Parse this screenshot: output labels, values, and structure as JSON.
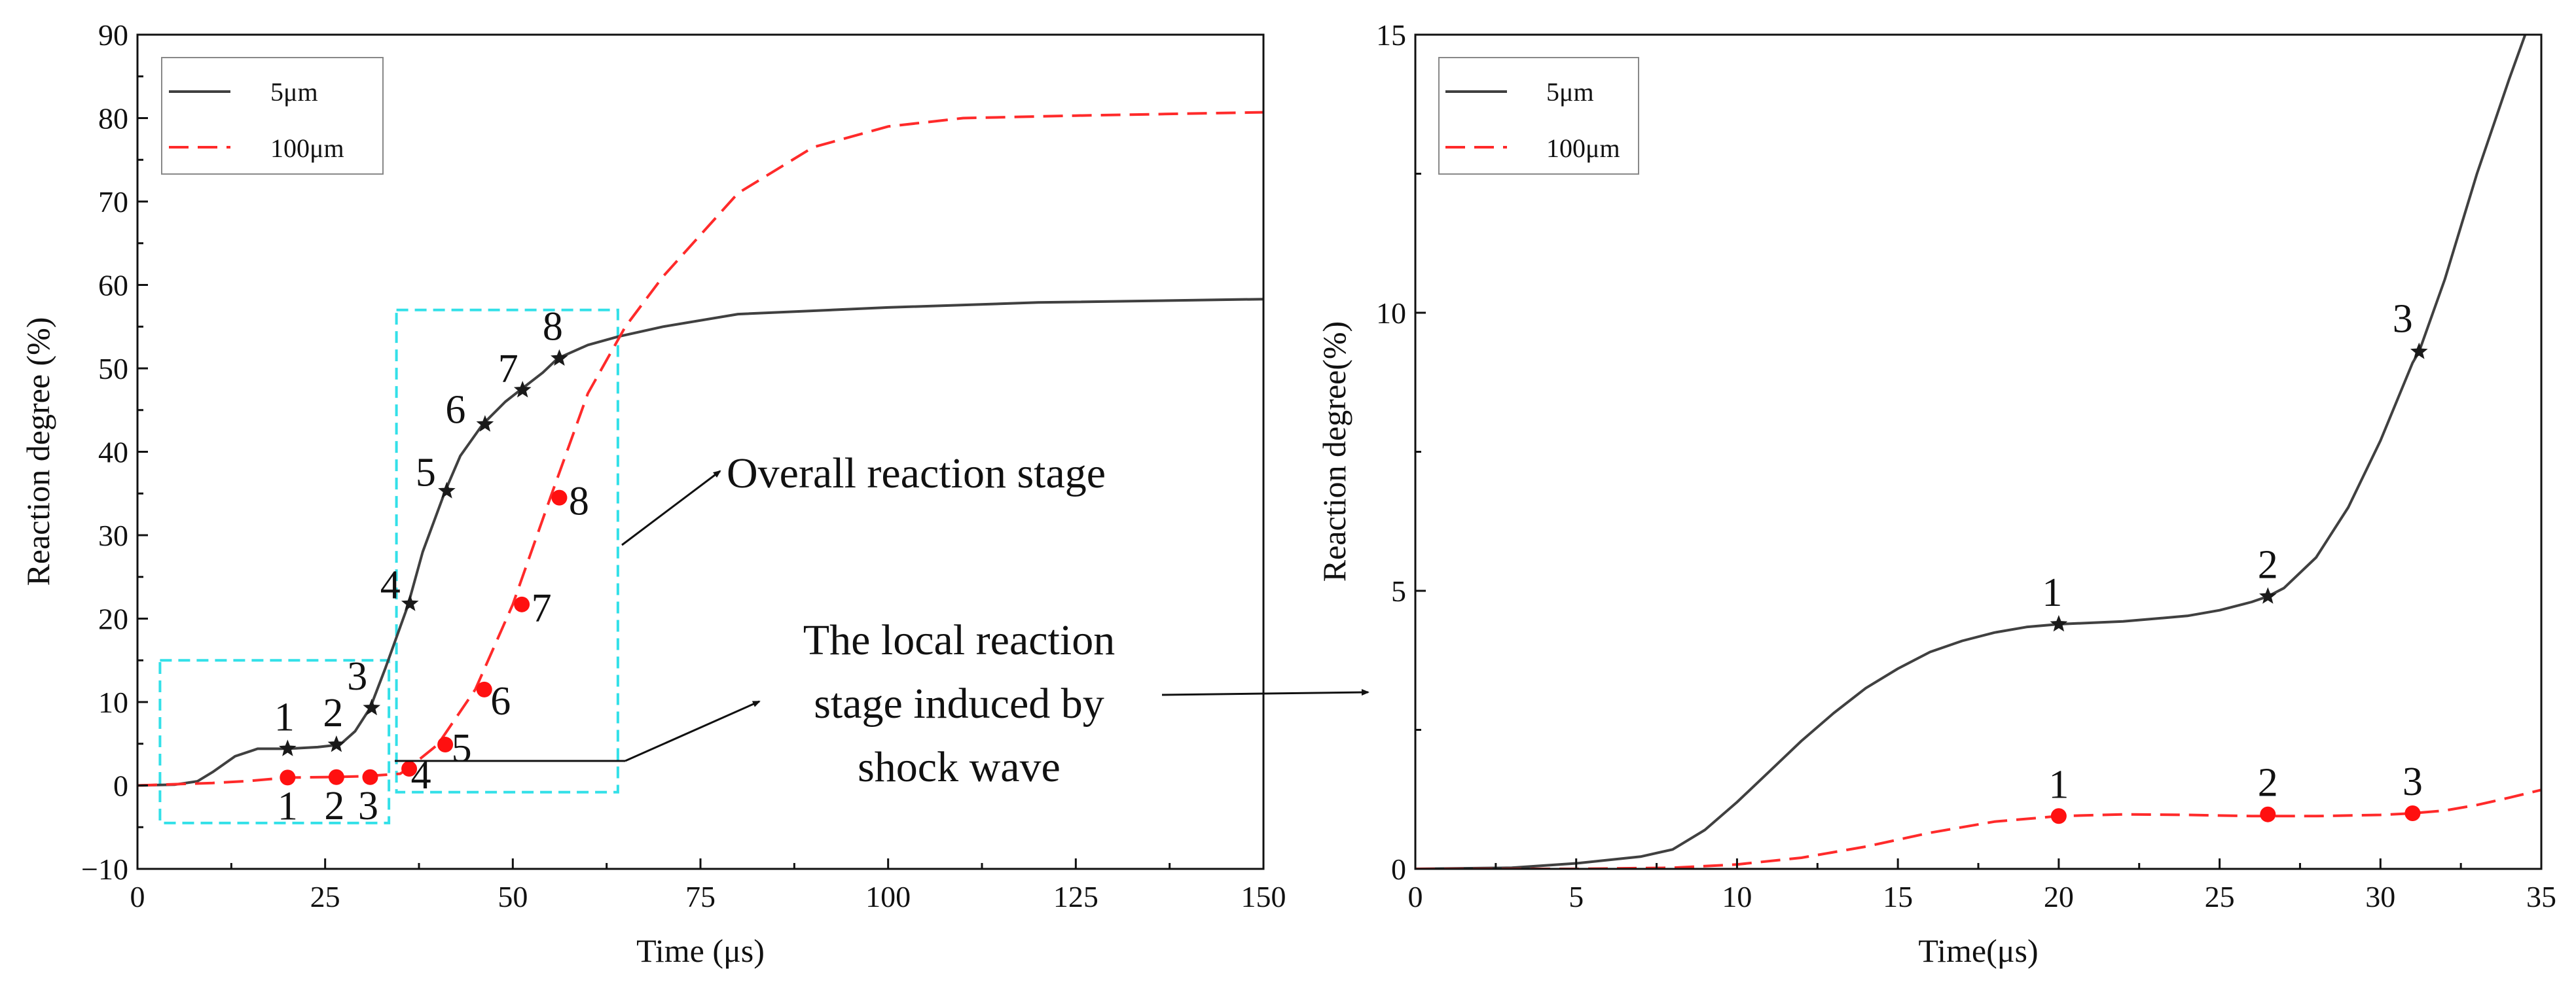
{
  "chart_data": [
    {
      "type": "line",
      "xlabel": "Time (μs)",
      "ylabel": "Reaction degree (%)",
      "xlim": [
        0,
        150
      ],
      "ylim": [
        -10,
        90
      ],
      "xticks": [
        0,
        25,
        50,
        75,
        100,
        125,
        150
      ],
      "yticks": [
        -10,
        0,
        10,
        20,
        30,
        40,
        50,
        60,
        70,
        80,
        90
      ],
      "grid": false,
      "legend": {
        "position": "top-left",
        "entries": [
          "5μm",
          "100μm"
        ]
      },
      "series": [
        {
          "name": "5μm",
          "color": "#404040",
          "dash": "solid",
          "x": [
            0,
            5,
            8,
            10,
            13,
            16,
            19,
            21,
            24,
            27,
            29,
            31,
            33,
            35,
            36,
            38,
            41,
            43,
            46,
            49,
            51,
            54,
            56,
            60,
            64,
            70,
            80,
            100,
            120,
            150
          ],
          "y": [
            0,
            0.1,
            0.5,
            1.6,
            3.5,
            4.4,
            4.4,
            4.45,
            4.6,
            4.9,
            6.5,
            9.3,
            14,
            19,
            21.5,
            28,
            35.3,
            39.5,
            43.3,
            46,
            47.4,
            49.5,
            51.2,
            52.8,
            53.8,
            55,
            56.5,
            57.3,
            57.9,
            58.3
          ]
        },
        {
          "name": "100μm",
          "color": "#ff2a2a",
          "dash": "dashed",
          "x": [
            0,
            10,
            15,
            20,
            25,
            30,
            35,
            36,
            40,
            45,
            50,
            55,
            60,
            65,
            70,
            75,
            80,
            90,
            100,
            110,
            125,
            150
          ],
          "y": [
            0,
            0.3,
            0.55,
            0.95,
            1.0,
            1.1,
            1.4,
            2.0,
            4.9,
            11.5,
            21.7,
            34.5,
            47,
            55,
            61,
            66,
            71,
            76.5,
            79,
            80,
            80.3,
            80.7
          ]
        }
      ],
      "markers": [
        {
          "series": "5μm",
          "symbol": "star",
          "points": [
            {
              "label": "1",
              "x": 20,
              "y": 4.4
            },
            {
              "label": "2",
              "x": 26.5,
              "y": 4.9
            },
            {
              "label": "3",
              "x": 31.2,
              "y": 9.3
            },
            {
              "label": "4",
              "x": 36.3,
              "y": 21.8
            },
            {
              "label": "5",
              "x": 41.2,
              "y": 35.3
            },
            {
              "label": "6",
              "x": 46.3,
              "y": 43.3
            },
            {
              "label": "7",
              "x": 51.3,
              "y": 47.4
            },
            {
              "label": "8",
              "x": 56.2,
              "y": 51.2
            }
          ]
        },
        {
          "series": "100μm",
          "symbol": "circle",
          "points": [
            {
              "label": "1",
              "x": 20,
              "y": 0.95
            },
            {
              "label": "2",
              "x": 26.5,
              "y": 1.0
            },
            {
              "label": "3",
              "x": 31,
              "y": 1.0
            },
            {
              "label": "4",
              "x": 36.2,
              "y": 2.0
            },
            {
              "label": "5",
              "x": 41,
              "y": 4.9
            },
            {
              "label": "6",
              "x": 46.2,
              "y": 11.5
            },
            {
              "label": "7",
              "x": 51.2,
              "y": 21.7
            },
            {
              "label": "8",
              "x": 56.2,
              "y": 34.5
            }
          ]
        }
      ],
      "highlight_boxes": [
        {
          "name": "local-reaction-box",
          "x": [
            3,
            33.5
          ],
          "y": [
            -4.5,
            15
          ],
          "color": "#33e0e8"
        },
        {
          "name": "overall-reaction-box",
          "x": [
            34.5,
            64
          ],
          "y": [
            -0.8,
            57
          ],
          "color": "#33e0e8"
        }
      ],
      "annotations": {
        "overall": [
          "Overall reaction stage"
        ],
        "local": [
          "The local reaction",
          "stage induced by",
          "shock wave"
        ]
      }
    },
    {
      "type": "line",
      "xlabel": "Time(μs)",
      "ylabel": "Reaction degree(%)",
      "xlim": [
        0,
        35
      ],
      "ylim": [
        0,
        15
      ],
      "xticks": [
        0,
        5,
        10,
        15,
        20,
        25,
        30,
        35
      ],
      "yticks": [
        0,
        5,
        10,
        15
      ],
      "grid": false,
      "legend": {
        "position": "top-left",
        "entries": [
          "5μm",
          "100μm"
        ]
      },
      "series": [
        {
          "name": "5μm",
          "color": "#404040",
          "dash": "solid",
          "x": [
            0,
            3,
            5,
            7,
            8,
            9,
            10,
            11,
            12,
            13,
            14,
            15,
            16,
            17,
            18,
            19,
            20,
            22,
            24,
            25,
            26,
            26.5,
            27,
            28,
            29,
            30,
            31,
            31.2,
            32,
            33,
            34,
            34.5
          ],
          "y": [
            0,
            0.02,
            0.1,
            0.22,
            0.35,
            0.7,
            1.2,
            1.75,
            2.3,
            2.8,
            3.25,
            3.6,
            3.9,
            4.1,
            4.25,
            4.35,
            4.4,
            4.45,
            4.55,
            4.65,
            4.8,
            4.9,
            5.05,
            5.6,
            6.5,
            7.7,
            9.1,
            9.3,
            10.6,
            12.5,
            14.2,
            15
          ]
        },
        {
          "name": "100μm",
          "color": "#ff2a2a",
          "dash": "dashed",
          "x": [
            0,
            5,
            8,
            10,
            12,
            14,
            16,
            18,
            20,
            22,
            24,
            26,
            28,
            30,
            31,
            32,
            33,
            34,
            35
          ],
          "y": [
            0,
            0,
            0.02,
            0.08,
            0.2,
            0.4,
            0.65,
            0.85,
            0.95,
            0.98,
            0.97,
            0.95,
            0.95,
            0.97,
            1.0,
            1.05,
            1.15,
            1.28,
            1.42
          ]
        }
      ],
      "markers": [
        {
          "series": "5μm",
          "symbol": "star",
          "points": [
            {
              "label": "1",
              "x": 20,
              "y": 4.4
            },
            {
              "label": "2",
              "x": 26.5,
              "y": 4.9
            },
            {
              "label": "3",
              "x": 31.2,
              "y": 9.3
            }
          ]
        },
        {
          "series": "100μm",
          "symbol": "circle",
          "points": [
            {
              "label": "1",
              "x": 20,
              "y": 0.95
            },
            {
              "label": "2",
              "x": 26.5,
              "y": 0.98
            },
            {
              "label": "3",
              "x": 31,
              "y": 1.0
            }
          ]
        }
      ]
    }
  ]
}
